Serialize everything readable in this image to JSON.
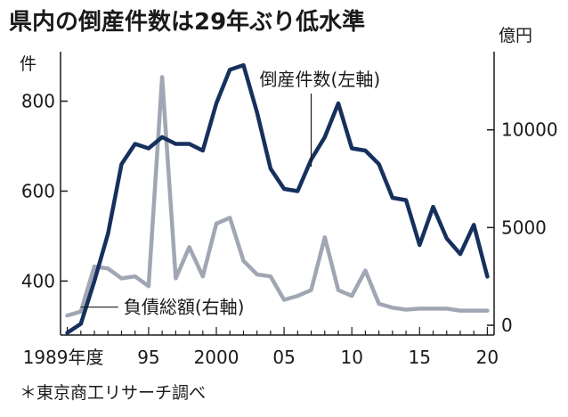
{
  "chart_data": {
    "type": "line",
    "title": "県内の倒産件数は29年ぶり低水準",
    "left_unit": "件",
    "right_unit": "億円",
    "source": "＊東京商工リサーチ調べ",
    "x": [
      1989,
      1990,
      1991,
      1992,
      1993,
      1994,
      1995,
      1996,
      1997,
      1998,
      1999,
      2000,
      2001,
      2002,
      2003,
      2004,
      2005,
      2006,
      2007,
      2008,
      2009,
      2010,
      2011,
      2012,
      2013,
      2014,
      2015,
      2016,
      2017,
      2018,
      2019,
      2020
    ],
    "x_ticks": [
      {
        "value": 1989,
        "label": "1989年度"
      },
      {
        "value": 1995,
        "label": "95"
      },
      {
        "value": 2000,
        "label": "2000"
      },
      {
        "value": 2005,
        "label": "05"
      },
      {
        "value": 2010,
        "label": "10"
      },
      {
        "value": 2015,
        "label": "15"
      },
      {
        "value": 2020,
        "label": "20"
      }
    ],
    "xlim": [
      1988.5,
      2020.5
    ],
    "y_left": {
      "ticks": [
        400,
        600,
        800
      ],
      "ylim": [
        280,
        910
      ]
    },
    "y_right": {
      "ticks": [
        0,
        5000,
        10000
      ],
      "ylim": [
        -500,
        14000
      ]
    },
    "series": [
      {
        "name": "倒産件数(左軸)",
        "axis": "left",
        "color": "#16305e",
        "values": [
          285,
          305,
          400,
          505,
          660,
          705,
          695,
          720,
          705,
          705,
          690,
          795,
          870,
          880,
          775,
          650,
          605,
          600,
          670,
          720,
          795,
          695,
          690,
          660,
          585,
          580,
          480,
          565,
          495,
          460,
          525,
          410
        ]
      },
      {
        "name": "負債総額(右軸)",
        "axis": "right",
        "color": "#a1a6b4",
        "values": [
          500,
          700,
          3000,
          2900,
          2400,
          2500,
          2000,
          12700,
          2400,
          4000,
          2500,
          5200,
          5500,
          3300,
          2600,
          2500,
          1300,
          1500,
          1800,
          4500,
          1800,
          1500,
          2800,
          1100,
          900,
          800,
          850,
          850,
          850,
          750,
          750,
          750
        ]
      }
    ]
  }
}
